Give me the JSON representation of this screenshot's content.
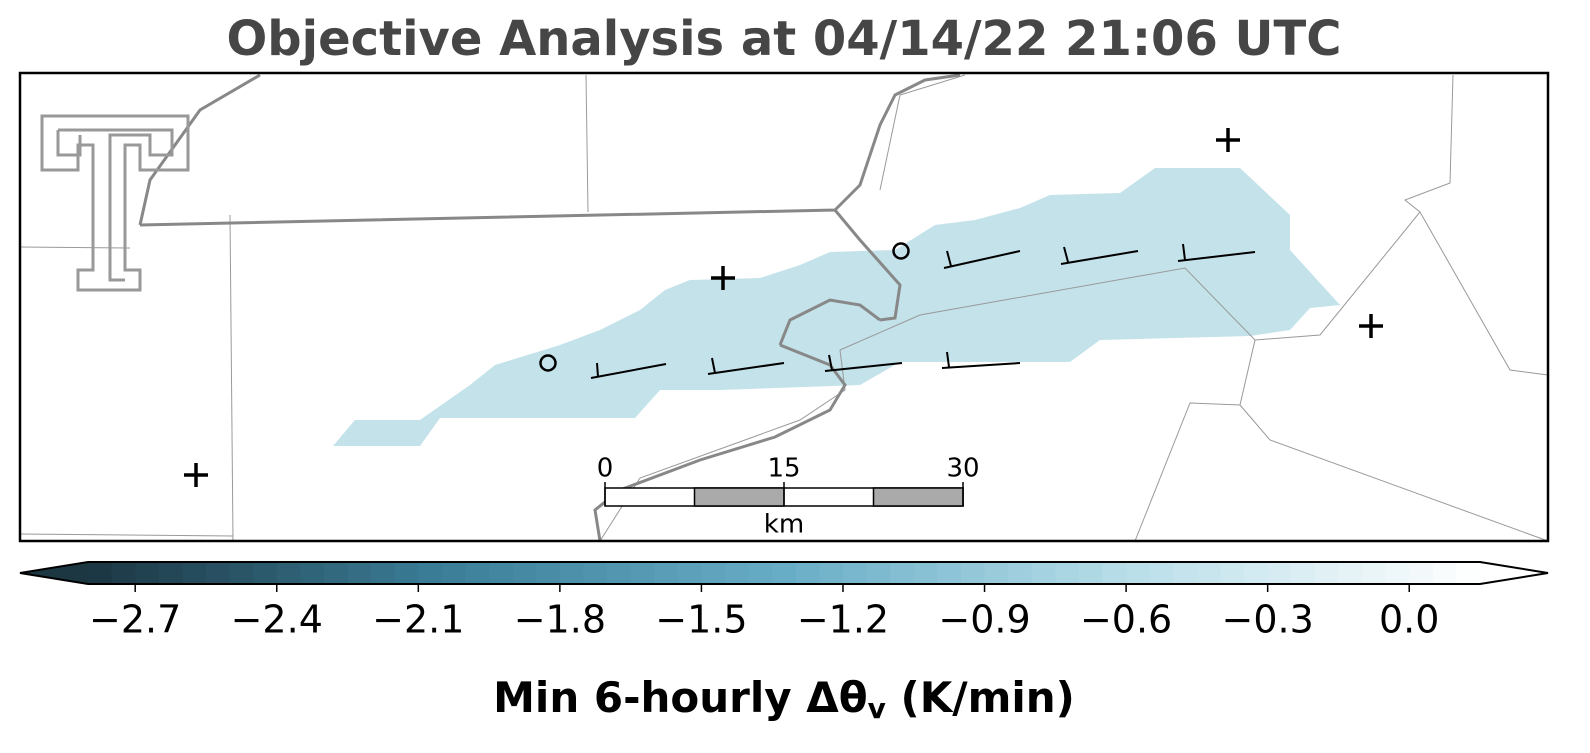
{
  "title": "Objective Analysis at 04/14/22 21:06 UTC",
  "colorbar": {
    "label": "Min 6-hourly Δθ",
    "label_subscript": "v",
    "label_suffix": " (K/min)",
    "clim": [
      -2.8,
      0.15
    ],
    "level_step": 0.05,
    "colormap": [
      "#1c3642",
      "#3b7d97",
      "#68adc6",
      "#b9dee9",
      "#ffffff"
    ],
    "ticks": [
      {
        "value": -2.7,
        "label": "−2.7"
      },
      {
        "value": -2.4,
        "label": "−2.4"
      },
      {
        "value": -2.1,
        "label": "−2.1"
      },
      {
        "value": -1.8,
        "label": "−1.8"
      },
      {
        "value": -1.5,
        "label": "−1.5"
      },
      {
        "value": -1.2,
        "label": "−1.2"
      },
      {
        "value": -0.9,
        "label": "−0.9"
      },
      {
        "value": -0.6,
        "label": "−0.6"
      },
      {
        "value": -0.3,
        "label": "−0.3"
      },
      {
        "value": 0,
        "label": "0.0"
      }
    ]
  },
  "scale_bar": {
    "xlim": [
      0,
      30
    ],
    "ticks": [
      0,
      15,
      30
    ],
    "unit": "km"
  }
}
